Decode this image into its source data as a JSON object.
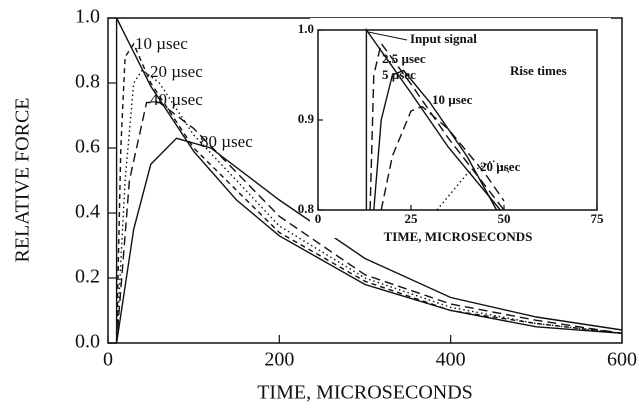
{
  "chart_data": [
    {
      "type": "line",
      "xlabel": "TIME, MICROSECONDS",
      "ylabel": "RELATIVE FORCE",
      "xlim": [
        0,
        600
      ],
      "ylim": [
        0,
        1.0
      ],
      "xticks": [
        0,
        200,
        400,
        600
      ],
      "yticks": [
        {
          "value": 0,
          "label": "0.0"
        },
        0.2,
        0.4,
        0.6,
        0.8,
        {
          "value": 1.0,
          "label": "1.0"
        }
      ],
      "series": [
        {
          "color": "#111",
          "dash": "solid",
          "x": [
            0,
            10,
            10,
            50,
            100,
            150,
            200,
            300,
            400,
            500,
            600
          ],
          "values": [
            0,
            0,
            1.0,
            0.79,
            0.59,
            0.44,
            0.33,
            0.18,
            0.1,
            0.05,
            0.03
          ]
        },
        {
          "name": "10 µsec",
          "color": "#111",
          "dash": "shortdash",
          "x": [
            10,
            15,
            20,
            30,
            50,
            100,
            200,
            300,
            400,
            500,
            600
          ],
          "values": [
            0,
            0.6,
            0.88,
            0.92,
            0.8,
            0.6,
            0.34,
            0.19,
            0.1,
            0.06,
            0.03
          ]
        },
        {
          "name": "20 µsec",
          "color": "#111",
          "dash": "dotted",
          "x": [
            10,
            20,
            30,
            40,
            60,
            100,
            200,
            300,
            400,
            500,
            600
          ],
          "values": [
            0,
            0.5,
            0.8,
            0.84,
            0.8,
            0.64,
            0.36,
            0.2,
            0.11,
            0.06,
            0.03
          ]
        },
        {
          "name": "40 µsec",
          "color": "#111",
          "dash": "dashed",
          "x": [
            10,
            25,
            45,
            60,
            100,
            200,
            300,
            400,
            500,
            600
          ],
          "values": [
            0,
            0.5,
            0.74,
            0.74,
            0.66,
            0.39,
            0.21,
            0.12,
            0.07,
            0.03
          ]
        },
        {
          "name": "80 µsec",
          "color": "#111",
          "dash": "solid",
          "x": [
            10,
            30,
            50,
            80,
            120,
            200,
            300,
            400,
            500,
            600
          ],
          "values": [
            0,
            0.35,
            0.55,
            0.63,
            0.6,
            0.44,
            0.26,
            0.14,
            0.08,
            0.04
          ]
        }
      ]
    },
    {
      "type": "line",
      "xlabel": "TIME, MICROSECONDS",
      "annotation": "Rise times",
      "xlim": [
        0,
        75
      ],
      "ylim": [
        0.8,
        1.0
      ],
      "xticks": [
        0,
        25,
        50,
        75
      ],
      "yticks": [
        0.8,
        0.9,
        {
          "value": 1.0,
          "label": "1.0"
        }
      ],
      "series": [
        {
          "name": "Input signal",
          "color": "#111",
          "dash": "solid",
          "x": [
            13,
            13,
            25,
            35,
            49
          ],
          "values": [
            0.8,
            1.0,
            0.93,
            0.87,
            0.8
          ]
        },
        {
          "name": "2.5 µsec",
          "color": "#111",
          "dash": "dashed",
          "x": [
            14,
            15,
            17,
            25,
            35,
            50
          ],
          "values": [
            0.8,
            0.95,
            0.985,
            0.94,
            0.88,
            0.8
          ]
        },
        {
          "name": "5 µsec",
          "color": "#111",
          "dash": "solid",
          "x": [
            15,
            17,
            20,
            23,
            30,
            40,
            48
          ],
          "values": [
            0.8,
            0.9,
            0.95,
            0.955,
            0.92,
            0.86,
            0.8
          ]
        },
        {
          "name": "10 µsec",
          "color": "#111",
          "dash": "dashed",
          "x": [
            17,
            20,
            25,
            28,
            35,
            45,
            50
          ],
          "values": [
            0.8,
            0.86,
            0.91,
            0.915,
            0.89,
            0.84,
            0.81
          ]
        },
        {
          "name": "20 µsec",
          "color": "#111",
          "dash": "dotted",
          "x": [
            32,
            40,
            47,
            52
          ],
          "values": [
            0.8,
            0.84,
            0.855,
            0.84
          ]
        }
      ]
    }
  ]
}
